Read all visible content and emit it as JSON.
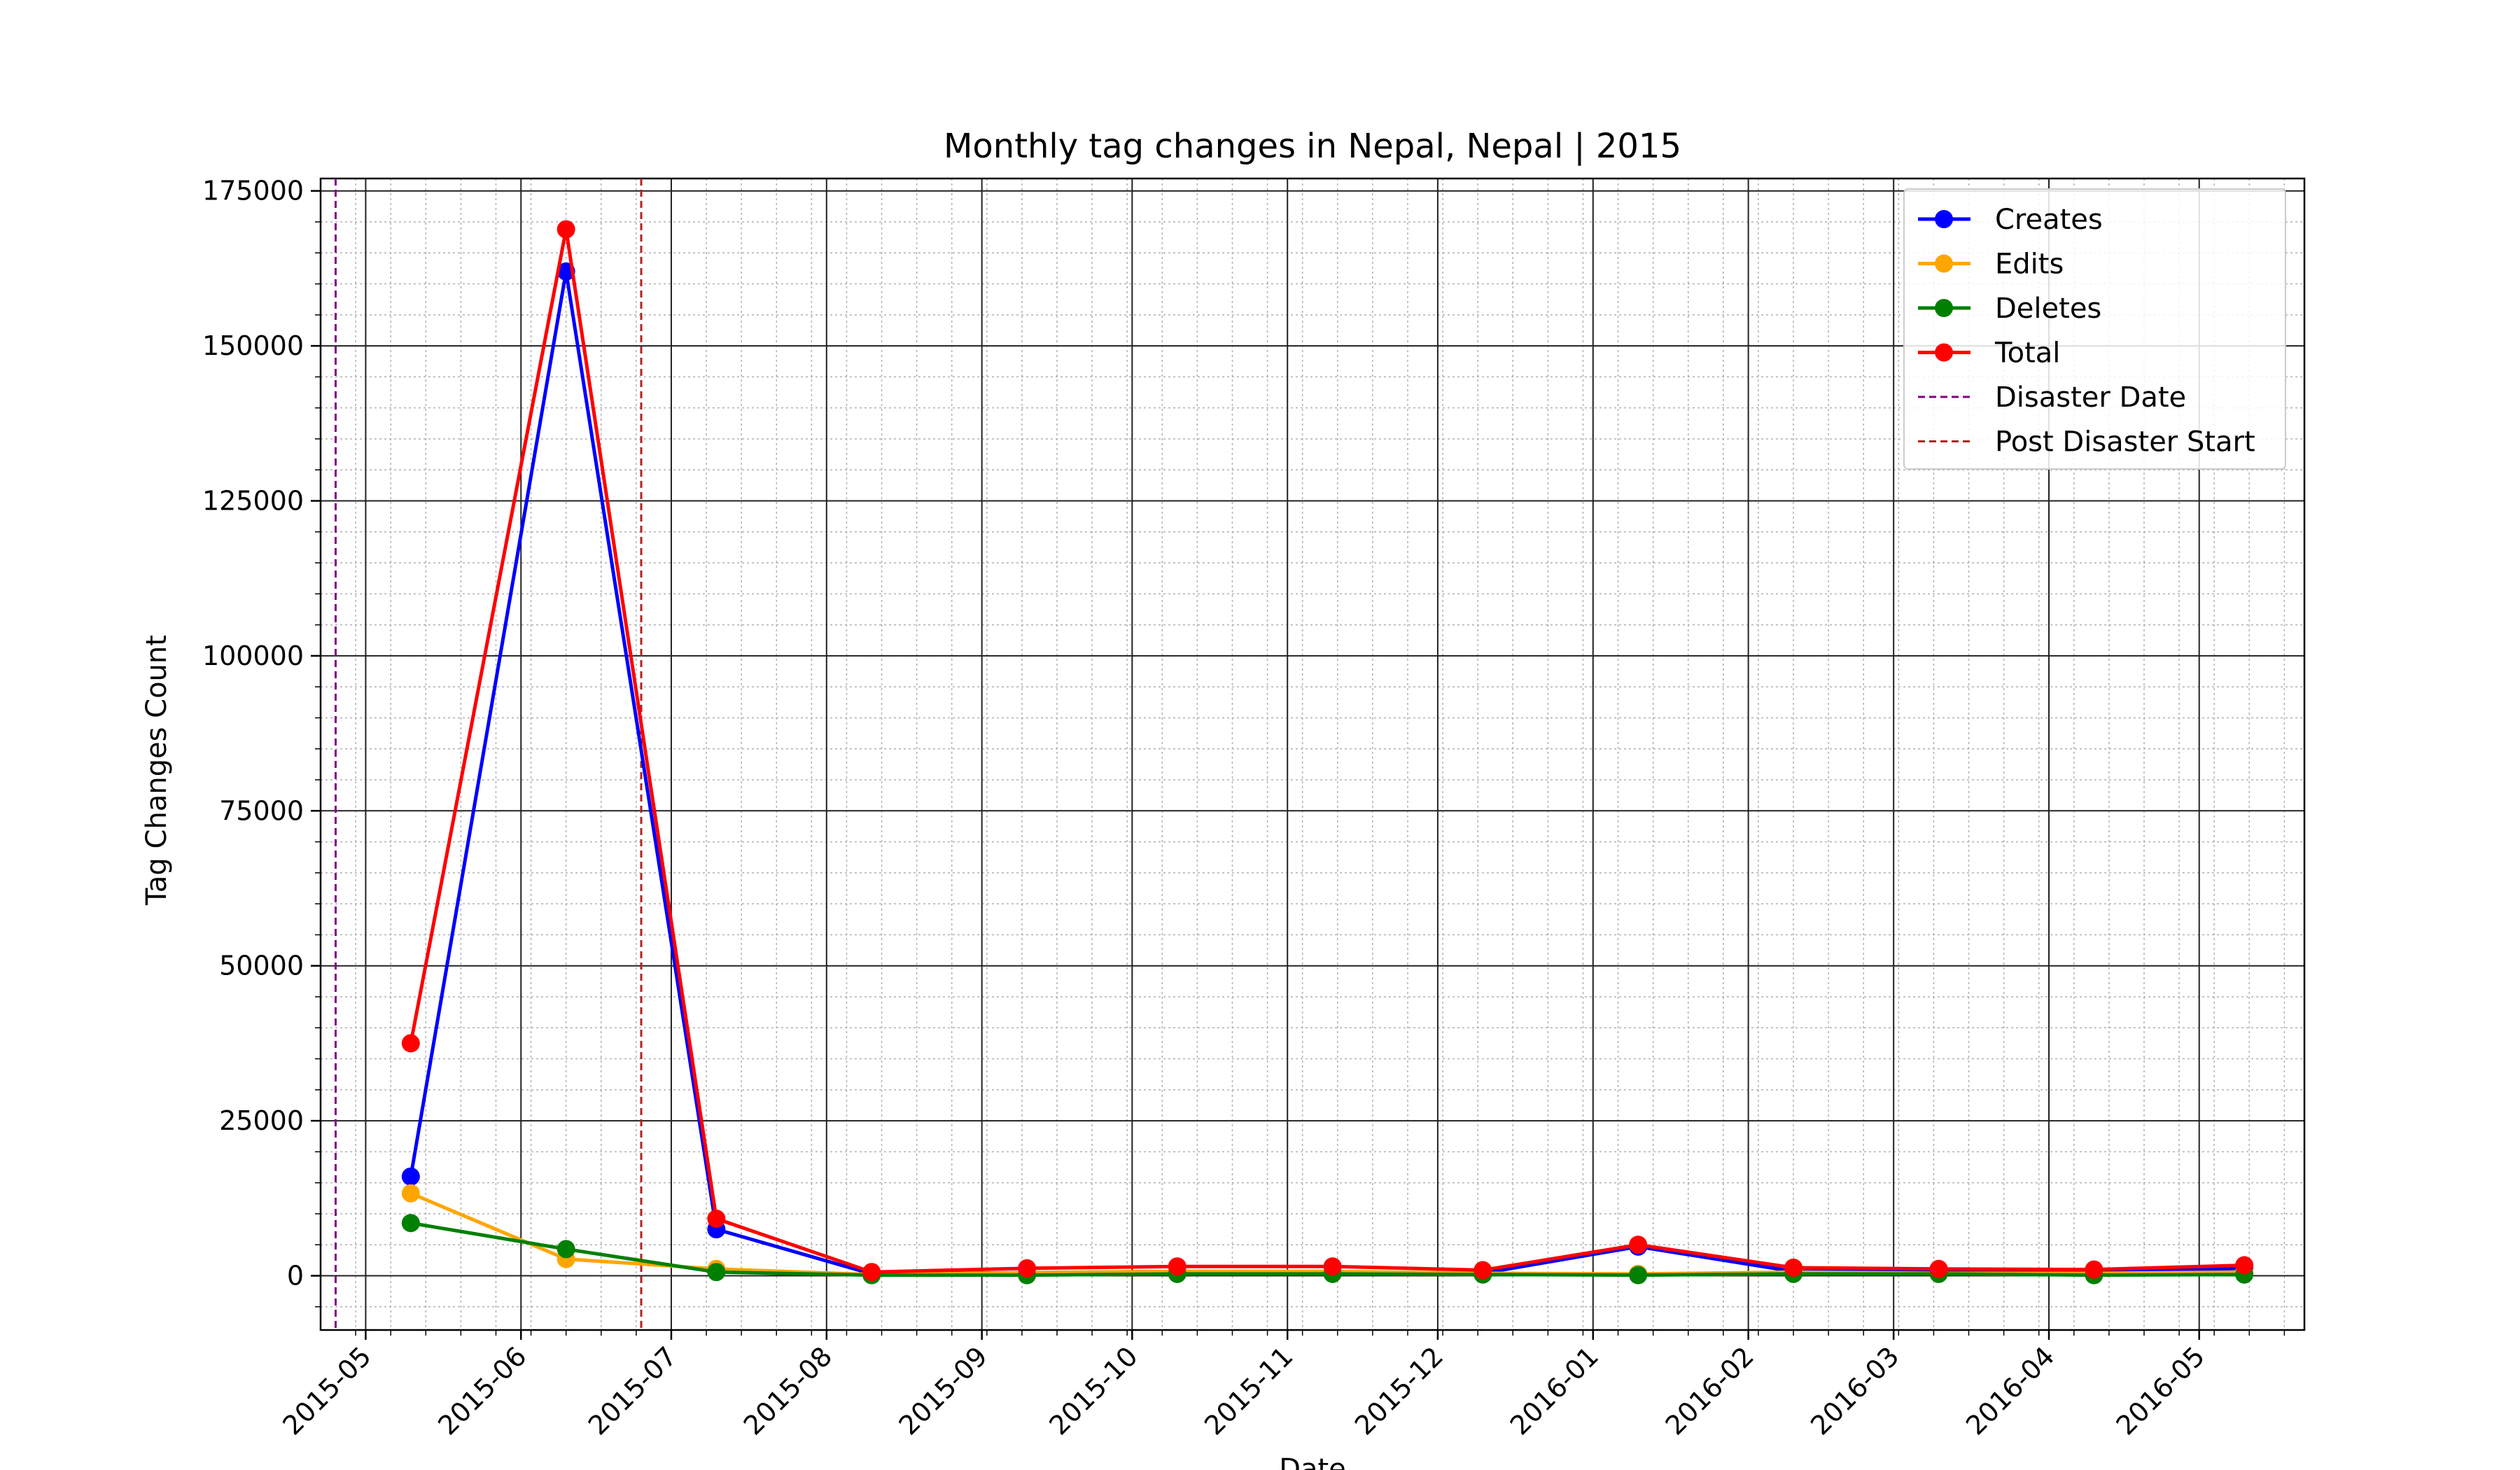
{
  "chart_data": {
    "type": "line",
    "title": "Monthly tag changes in Nepal, Nepal | 2015",
    "xlabel": "Date",
    "ylabel": "Tag Changes Count",
    "x_axis": "date",
    "xlim": [
      "2015-04-22",
      "2016-05-22"
    ],
    "ylim": [
      -8750,
      177000
    ],
    "x_ticks": [
      "2015-05",
      "2015-06",
      "2015-07",
      "2015-08",
      "2015-09",
      "2015-10",
      "2015-11",
      "2015-12",
      "2016-01",
      "2016-02",
      "2016-03",
      "2016-04",
      "2016-05"
    ],
    "y_ticks": [
      0,
      25000,
      50000,
      75000,
      100000,
      125000,
      150000,
      175000
    ],
    "grid": true,
    "minor_grid": true,
    "legend_position": "top-right",
    "x": [
      "2015-05-10",
      "2015-06-10",
      "2015-07-10",
      "2015-08-10",
      "2015-09-10",
      "2015-10-10",
      "2015-11-10",
      "2015-12-10",
      "2016-01-10",
      "2016-02-10",
      "2016-03-10",
      "2016-04-10",
      "2016-05-10"
    ],
    "series": [
      {
        "name": "Creates",
        "color": "#0000ff",
        "values": [
          16000,
          162000,
          7500,
          300,
          500,
          700,
          600,
          400,
          4700,
          700,
          700,
          600,
          1200
        ]
      },
      {
        "name": "Edits",
        "color": "#ffa500",
        "values": [
          13300,
          2700,
          1100,
          200,
          500,
          700,
          700,
          400,
          300,
          600,
          400,
          400,
          600
        ]
      },
      {
        "name": "Deletes",
        "color": "#008000",
        "values": [
          8500,
          4300,
          600,
          100,
          100,
          300,
          300,
          200,
          100,
          300,
          300,
          100,
          200
        ]
      },
      {
        "name": "Total",
        "color": "#ff0000",
        "values": [
          37500,
          168800,
          9200,
          600,
          1200,
          1500,
          1500,
          900,
          5000,
          1300,
          1100,
          1000,
          1700
        ]
      }
    ],
    "vlines": [
      {
        "name": "Disaster Date",
        "date": "2015-04-25",
        "color": "#800080",
        "style": "dashed"
      },
      {
        "name": "Post Disaster Start",
        "date": "2015-06-25",
        "color": "#b22222",
        "style": "dashed"
      }
    ]
  }
}
